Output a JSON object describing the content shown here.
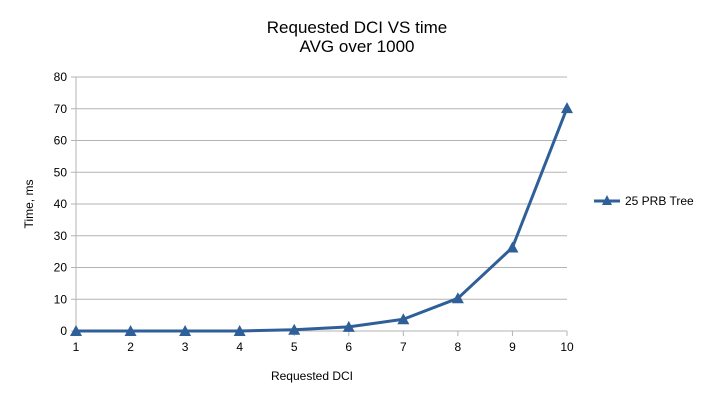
{
  "chart_data": {
    "type": "line",
    "title": "Requested DCI VS time",
    "subtitle": "AVG over 1000",
    "xlabel": "Requested DCI",
    "ylabel": "Time, ms",
    "categories": [
      "1",
      "2",
      "3",
      "4",
      "5",
      "6",
      "7",
      "8",
      "9",
      "10"
    ],
    "ylim": [
      0,
      80
    ],
    "yticks": [
      "0",
      "10",
      "20",
      "30",
      "40",
      "50",
      "60",
      "70",
      "80"
    ],
    "grid": true,
    "legend_position": "right",
    "series": [
      {
        "name": "25 PRB Tree",
        "color": "#2f5f98",
        "marker": "triangle",
        "values": [
          0,
          0,
          0,
          0,
          0.4,
          1.3,
          3.7,
          10.3,
          26.3,
          70.2
        ]
      }
    ]
  }
}
